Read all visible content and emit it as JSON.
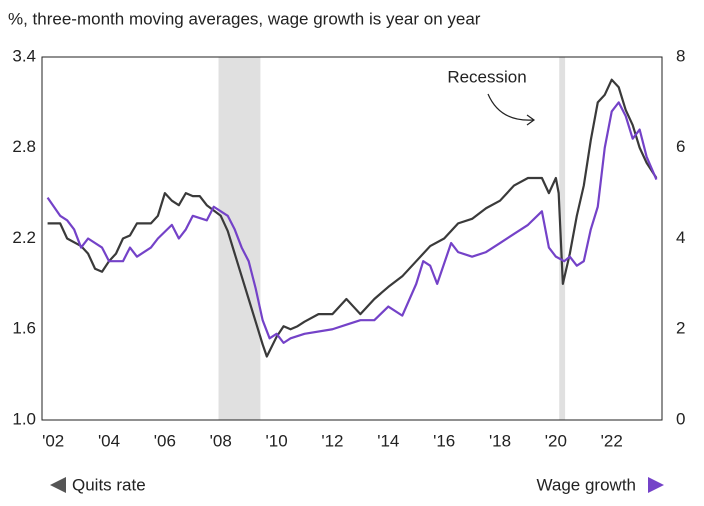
{
  "chart_data": {
    "type": "line",
    "subtitle": "%, three-month moving averages, wage growth is year on year",
    "annotation": "Recession",
    "xlim": [
      2001.6,
      2023.8
    ],
    "xticks": [
      {
        "value": 2002,
        "label": "'02"
      },
      {
        "value": 2004,
        "label": "'04"
      },
      {
        "value": 2006,
        "label": "'06"
      },
      {
        "value": 2008,
        "label": "'08"
      },
      {
        "value": 2010,
        "label": "'10"
      },
      {
        "value": 2012,
        "label": "'12"
      },
      {
        "value": 2014,
        "label": "'14"
      },
      {
        "value": 2016,
        "label": "'16"
      },
      {
        "value": 2018,
        "label": "'18"
      },
      {
        "value": 2020,
        "label": "'20"
      },
      {
        "value": 2022,
        "label": "'22"
      }
    ],
    "ylim": [
      1,
      3.4
    ],
    "yticks": [
      {
        "value": 1,
        "label": "1.0"
      },
      1.6,
      2.2,
      2.8,
      3.4
    ],
    "y2lim": [
      0,
      8
    ],
    "y2ticks": [
      0,
      2,
      4,
      6,
      8
    ],
    "recessions": [
      [
        2007.92,
        2009.42
      ],
      [
        2020.12,
        2020.33
      ]
    ],
    "recession_color": "#e0e0e0",
    "series": [
      {
        "name": "Quits rate",
        "color": "#3a3a3a",
        "axis": "y",
        "x": [
          2001.8,
          2002.25,
          2002.5,
          2003.0,
          2003.25,
          2003.5,
          2003.75,
          2004.0,
          2004.25,
          2004.5,
          2004.75,
          2005.0,
          2005.5,
          2005.75,
          2006.0,
          2006.25,
          2006.5,
          2006.75,
          2007.0,
          2007.25,
          2007.5,
          2008.0,
          2008.25,
          2008.5,
          2008.75,
          2009.0,
          2009.25,
          2009.5,
          2009.65,
          2010.0,
          2010.25,
          2010.5,
          2010.75,
          2011.0,
          2011.5,
          2012.0,
          2012.5,
          2012.75,
          2013.0,
          2013.5,
          2014.0,
          2014.5,
          2015.0,
          2015.5,
          2016.0,
          2016.5,
          2017.0,
          2017.5,
          2018.0,
          2018.5,
          2019.0,
          2019.5,
          2019.75,
          2020.0,
          2020.1,
          2020.25,
          2020.5,
          2020.75,
          2021.0,
          2021.25,
          2021.5,
          2021.75,
          2022.0,
          2022.25,
          2022.5,
          2022.75,
          2023.0,
          2023.25,
          2023.6
        ],
        "values": [
          2.3,
          2.3,
          2.2,
          2.15,
          2.1,
          2.0,
          1.98,
          2.05,
          2.1,
          2.2,
          2.22,
          2.3,
          2.3,
          2.35,
          2.5,
          2.45,
          2.42,
          2.5,
          2.48,
          2.48,
          2.42,
          2.35,
          2.25,
          2.1,
          1.95,
          1.8,
          1.65,
          1.5,
          1.42,
          1.55,
          1.62,
          1.6,
          1.62,
          1.65,
          1.7,
          1.7,
          1.8,
          1.75,
          1.7,
          1.8,
          1.88,
          1.95,
          2.05,
          2.15,
          2.2,
          2.3,
          2.33,
          2.4,
          2.45,
          2.55,
          2.6,
          2.6,
          2.5,
          2.6,
          2.5,
          1.9,
          2.1,
          2.35,
          2.55,
          2.85,
          3.1,
          3.15,
          3.25,
          3.2,
          3.05,
          2.95,
          2.8,
          2.7,
          2.6
        ]
      },
      {
        "name": "Wage growth",
        "color": "#7442c8",
        "axis": "y2",
        "x": [
          2001.8,
          2002.25,
          2002.5,
          2002.75,
          2003.0,
          2003.25,
          2003.75,
          2004.0,
          2004.5,
          2004.75,
          2005.0,
          2005.5,
          2005.75,
          2006.25,
          2006.5,
          2006.75,
          2007.0,
          2007.5,
          2007.75,
          2008.25,
          2008.5,
          2008.75,
          2009.0,
          2009.25,
          2009.5,
          2009.75,
          2010.0,
          2010.25,
          2010.5,
          2011.0,
          2012.0,
          2012.5,
          2013.0,
          2013.5,
          2014.0,
          2014.5,
          2015.0,
          2015.25,
          2015.5,
          2015.75,
          2016.25,
          2016.5,
          2017.0,
          2017.5,
          2018.0,
          2018.5,
          2019.0,
          2019.5,
          2019.75,
          2020.0,
          2020.3,
          2020.5,
          2020.75,
          2021.0,
          2021.25,
          2021.5,
          2021.75,
          2022.0,
          2022.25,
          2022.5,
          2022.75,
          2023.0,
          2023.25,
          2023.6
        ],
        "values": [
          4.9,
          4.5,
          4.4,
          4.2,
          3.8,
          4.0,
          3.8,
          3.5,
          3.5,
          3.8,
          3.6,
          3.8,
          4.0,
          4.3,
          4.0,
          4.2,
          4.5,
          4.4,
          4.7,
          4.5,
          4.2,
          3.8,
          3.5,
          2.9,
          2.2,
          1.8,
          1.9,
          1.7,
          1.8,
          1.9,
          2.0,
          2.1,
          2.2,
          2.2,
          2.5,
          2.3,
          3.0,
          3.5,
          3.4,
          3.0,
          3.9,
          3.7,
          3.6,
          3.7,
          3.9,
          4.1,
          4.3,
          4.6,
          3.8,
          3.6,
          3.5,
          3.6,
          3.4,
          3.5,
          4.2,
          4.7,
          6.0,
          6.8,
          7.0,
          6.7,
          6.2,
          6.4,
          5.8,
          5.3
        ]
      }
    ]
  }
}
